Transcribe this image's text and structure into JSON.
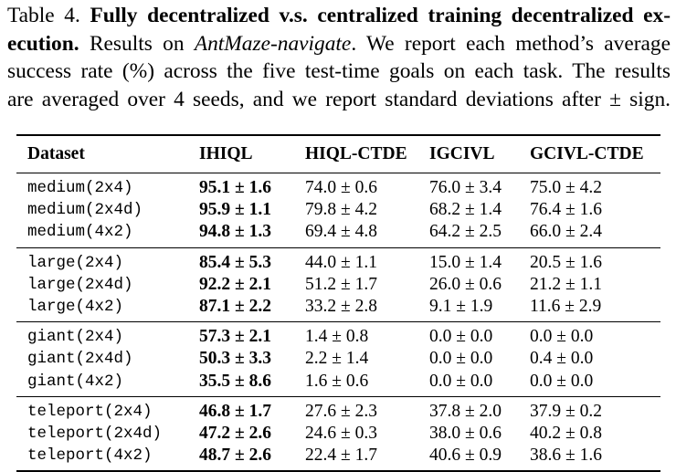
{
  "caption": {
    "label": "Table 4.",
    "bold_title_part1": "Fully decentralized v.s. centralized training decentralized ex-",
    "bold_title_part2": "ecution.",
    "text_before_italic": "Results on ",
    "italic_env": "AntMaze-navigate",
    "text_line2_rest": ". We report each method’s average",
    "line3": "success rate (%) across the five test-time goals on each task. The results",
    "line4": "are averaged over 4 seeds, and we report standard deviations after ± sign."
  },
  "table": {
    "headers": [
      "Dataset",
      "IHIQL",
      "HIQL-CTDE",
      "IGCIVL",
      "GCIVL-CTDE"
    ],
    "groups": [
      {
        "rows": [
          {
            "dataset": "medium(2x4)",
            "values": [
              "95.1 ± 1.6",
              "74.0 ± 0.6",
              "76.0 ± 3.4",
              "75.0 ± 4.2"
            ],
            "best": 0
          },
          {
            "dataset": "medium(2x4d)",
            "values": [
              "95.9 ± 1.1",
              "79.8 ± 4.2",
              "68.2 ± 1.4",
              "76.4 ± 1.6"
            ],
            "best": 0
          },
          {
            "dataset": "medium(4x2)",
            "values": [
              "94.8 ± 1.3",
              "69.4 ± 4.8",
              "64.2 ± 2.5",
              "66.0 ± 2.4"
            ],
            "best": 0
          }
        ]
      },
      {
        "rows": [
          {
            "dataset": "large(2x4)",
            "values": [
              "85.4 ± 5.3",
              "44.0 ± 1.1",
              "15.0 ± 1.4",
              "20.5 ± 1.6"
            ],
            "best": 0
          },
          {
            "dataset": "large(2x4d)",
            "values": [
              "92.2 ± 2.1",
              "51.2 ± 1.7",
              "26.0 ± 0.6",
              "21.2 ± 1.1"
            ],
            "best": 0
          },
          {
            "dataset": "large(4x2)",
            "values": [
              "87.1 ± 2.2",
              "33.2 ± 2.8",
              "9.1 ± 1.9",
              "11.6 ± 2.9"
            ],
            "best": 0
          }
        ]
      },
      {
        "rows": [
          {
            "dataset": "giant(2x4)",
            "values": [
              "57.3 ± 2.1",
              "1.4 ± 0.8",
              "0.0 ± 0.0",
              "0.0 ± 0.0"
            ],
            "best": 0
          },
          {
            "dataset": "giant(2x4d)",
            "values": [
              "50.3 ± 3.3",
              "2.2 ± 1.4",
              "0.0 ± 0.0",
              "0.4 ± 0.0"
            ],
            "best": 0
          },
          {
            "dataset": "giant(4x2)",
            "values": [
              "35.5 ± 8.6",
              "1.6 ± 0.6",
              "0.0 ± 0.0",
              "0.0 ± 0.0"
            ],
            "best": 0
          }
        ]
      },
      {
        "rows": [
          {
            "dataset": "teleport(2x4)",
            "values": [
              "46.8 ± 1.7",
              "27.6 ± 2.3",
              "37.8 ± 2.0",
              "37.9 ± 0.2"
            ],
            "best": 0
          },
          {
            "dataset": "teleport(2x4d)",
            "values": [
              "47.2 ± 2.6",
              "24.6 ± 0.3",
              "38.0 ± 0.6",
              "40.2 ± 0.8"
            ],
            "best": 0
          },
          {
            "dataset": "teleport(4x2)",
            "values": [
              "48.7 ± 2.6",
              "22.4 ± 1.7",
              "40.6 ± 0.9",
              "38.6 ± 1.6"
            ],
            "best": 0
          }
        ]
      }
    ]
  }
}
